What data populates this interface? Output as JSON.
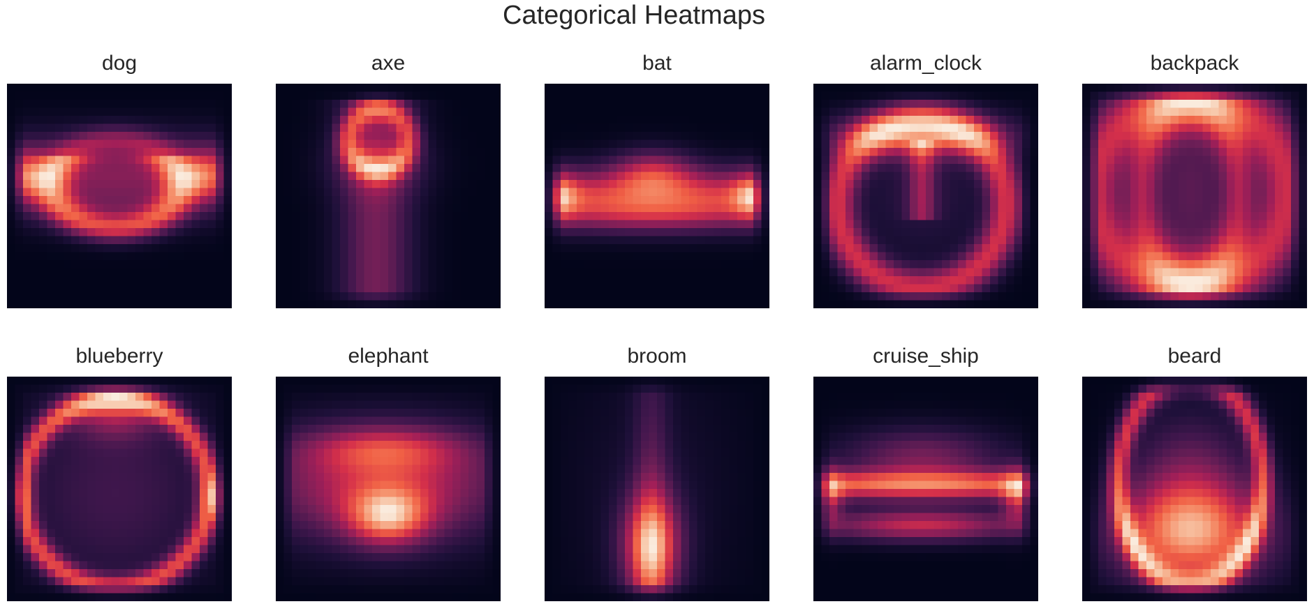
{
  "figure": {
    "title": "Categorical Heatmaps"
  },
  "chart_data": [
    {
      "type": "heatmap",
      "title": "dog",
      "grid": "28x28",
      "colormap": "rocket",
      "colorbar": false,
      "axes_ticks": false,
      "pattern": "horizontal band with U-shaped loop, bright at left/right edges"
    },
    {
      "type": "heatmap",
      "title": "axe",
      "grid": "28x28",
      "colormap": "rocket",
      "colorbar": false,
      "axes_ticks": false,
      "pattern": "vertical column with bright rectangular head at top"
    },
    {
      "type": "heatmap",
      "title": "bat",
      "grid": "28x28",
      "colormap": "rocket",
      "colorbar": false,
      "axes_ticks": false,
      "pattern": "wide horizontal band with bright center and edges"
    },
    {
      "type": "heatmap",
      "title": "alarm_clock",
      "grid": "28x28",
      "colormap": "rocket",
      "colorbar": false,
      "axes_ticks": false,
      "pattern": "ring with bright top arc and clock hand"
    },
    {
      "type": "heatmap",
      "title": "backpack",
      "grid": "28x28",
      "colormap": "rocket",
      "colorbar": false,
      "axes_ticks": false,
      "pattern": "large ellipse ring with darker center"
    },
    {
      "type": "heatmap",
      "title": "blueberry",
      "grid": "28x28",
      "colormap": "rocket",
      "colorbar": false,
      "axes_ticks": false,
      "pattern": "circle ring with bright top lobe"
    },
    {
      "type": "heatmap",
      "title": "elephant",
      "grid": "28x28",
      "colormap": "rocket",
      "colorbar": false,
      "axes_ticks": false,
      "pattern": "wide blob, bright lower-middle"
    },
    {
      "type": "heatmap",
      "title": "broom",
      "grid": "28x28",
      "colormap": "rocket",
      "colorbar": false,
      "axes_ticks": false,
      "pattern": "thin vertical stick widening to bright base"
    },
    {
      "type": "heatmap",
      "title": "cruise_ship",
      "grid": "28x28",
      "colormap": "rocket",
      "colorbar": false,
      "axes_ticks": false,
      "pattern": "hull shape with superstructure bump"
    },
    {
      "type": "heatmap",
      "title": "beard",
      "grid": "28x28",
      "colormap": "rocket",
      "colorbar": false,
      "axes_ticks": false,
      "pattern": "vertical oval ring with bright lower fill"
    }
  ]
}
